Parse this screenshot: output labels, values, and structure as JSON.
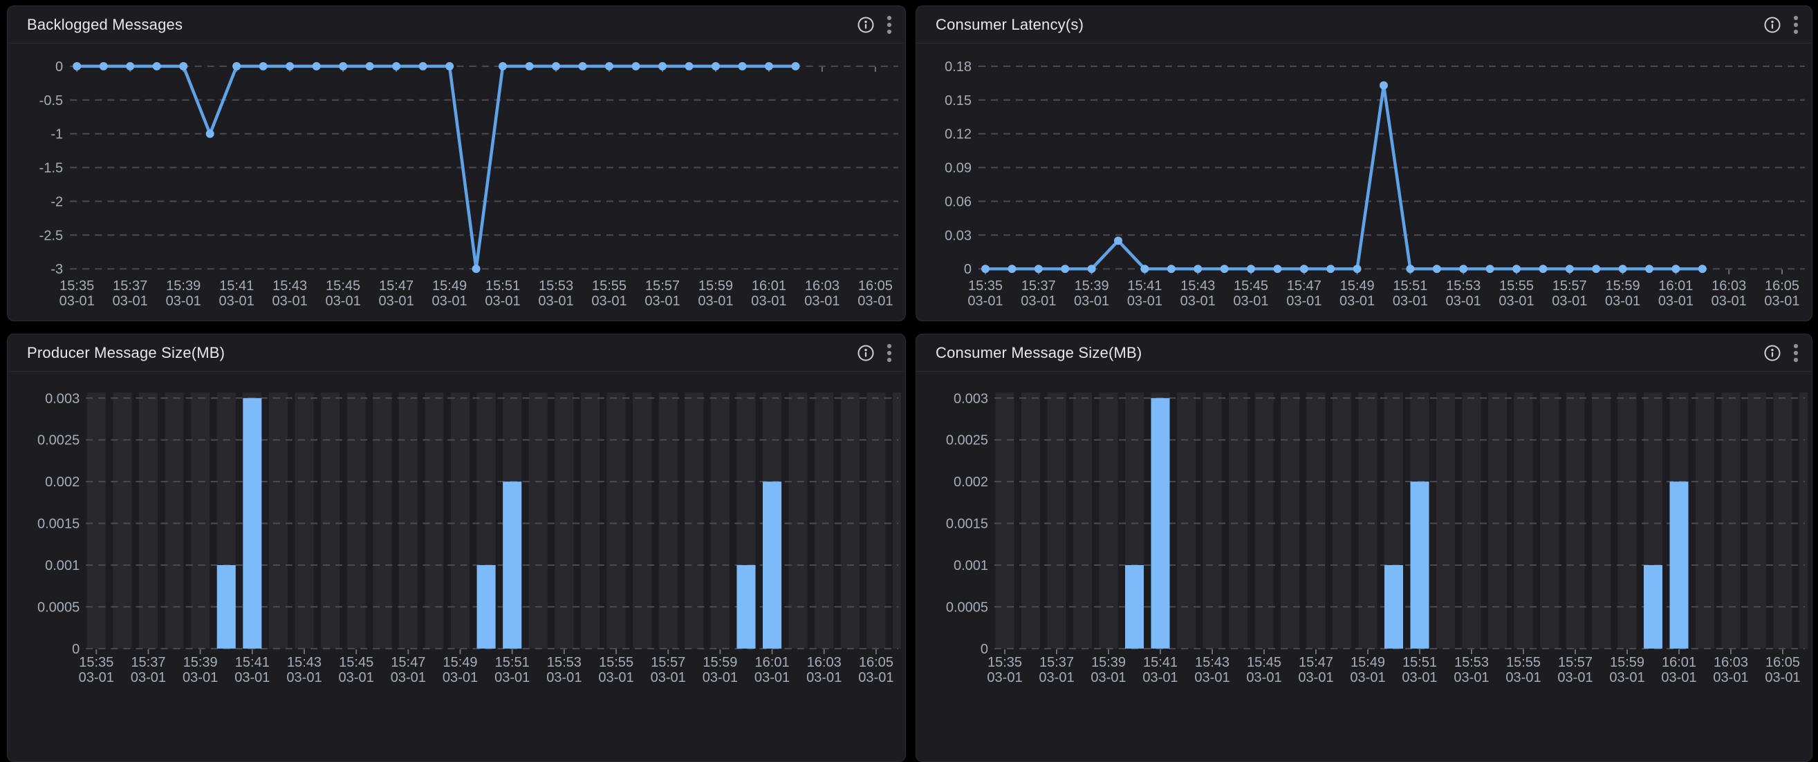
{
  "panels": [
    {
      "title": "Backlogged Messages"
    },
    {
      "title": "Consumer Latency(s)"
    },
    {
      "title": "Producer Message Size(MB)"
    },
    {
      "title": "Consumer Message Size(MB)"
    }
  ],
  "panel_actions": {
    "info_icon": "info-icon",
    "menu_icon": "kebab-menu-icon"
  },
  "colors": {
    "page_bg": "#000000",
    "panel_bg": "#1d1d21",
    "panel_border": "#2c2c31",
    "divider": "#2a2a2f",
    "title_text": "#e8e8ea",
    "tick_text": "#a7adb8",
    "grid_line": "#4b4b51",
    "axis_tick": "#6e6e75",
    "series_line": "#5fa3e6",
    "series_marker": "#7ab6f3",
    "series_bar": "#7dbafa",
    "bar_background": "#29292d",
    "icon": "#cfcfd4",
    "kebab": "#8f8f96"
  },
  "chart_data": [
    {
      "type": "line",
      "title": "Backlogged Messages",
      "x": [
        "15:35",
        "15:36",
        "15:37",
        "15:38",
        "15:39",
        "15:40",
        "15:41",
        "15:42",
        "15:43",
        "15:44",
        "15:45",
        "15:46",
        "15:47",
        "15:48",
        "15:49",
        "15:50",
        "15:51",
        "15:52",
        "15:53",
        "15:54",
        "15:55",
        "15:56",
        "15:57",
        "15:58",
        "15:59",
        "16:00",
        "16:01",
        "16:02"
      ],
      "values": [
        0,
        0,
        0,
        0,
        0,
        -1,
        0,
        0,
        0,
        0,
        0,
        0,
        0,
        0,
        0,
        -3,
        0,
        0,
        0,
        0,
        0,
        0,
        0,
        0,
        0,
        0,
        0,
        0
      ],
      "ylim": [
        -3,
        0
      ],
      "yticks": [
        "0",
        "-0.5",
        "-1",
        "-1.5",
        "-2",
        "-2.5",
        "-3"
      ],
      "xtick_labels": [
        "15:35",
        "15:37",
        "15:39",
        "15:41",
        "15:43",
        "15:45",
        "15:47",
        "15:49",
        "15:51",
        "15:53",
        "15:55",
        "15:57",
        "15:59",
        "16:01",
        "16:03",
        "16:05"
      ],
      "date_label": "03-01",
      "grid": "dashed",
      "legend": "none"
    },
    {
      "type": "line",
      "title": "Consumer Latency(s)",
      "x": [
        "15:35",
        "15:36",
        "15:37",
        "15:38",
        "15:39",
        "15:40",
        "15:41",
        "15:42",
        "15:43",
        "15:44",
        "15:45",
        "15:46",
        "15:47",
        "15:48",
        "15:49",
        "15:50",
        "15:51",
        "15:52",
        "15:53",
        "15:54",
        "15:55",
        "15:56",
        "15:57",
        "15:58",
        "15:59",
        "16:00",
        "16:01",
        "16:02"
      ],
      "values": [
        0,
        0,
        0,
        0,
        0,
        0.025,
        0,
        0,
        0,
        0,
        0,
        0,
        0,
        0,
        0,
        0.163,
        0,
        0,
        0,
        0,
        0,
        0,
        0,
        0,
        0,
        0,
        0,
        0
      ],
      "ylim": [
        0,
        0.18
      ],
      "yticks": [
        "0.18",
        "0.15",
        "0.12",
        "0.09",
        "0.06",
        "0.03",
        "0"
      ],
      "xtick_labels": [
        "15:35",
        "15:37",
        "15:39",
        "15:41",
        "15:43",
        "15:45",
        "15:47",
        "15:49",
        "15:51",
        "15:53",
        "15:55",
        "15:57",
        "15:59",
        "16:01",
        "16:03",
        "16:05"
      ],
      "date_label": "03-01",
      "grid": "dashed",
      "legend": "none"
    },
    {
      "type": "bar",
      "title": "Producer Message Size(MB)",
      "x": [
        "15:35",
        "15:36",
        "15:37",
        "15:38",
        "15:39",
        "15:40",
        "15:41",
        "15:42",
        "15:43",
        "15:44",
        "15:45",
        "15:46",
        "15:47",
        "15:48",
        "15:49",
        "15:50",
        "15:51",
        "15:52",
        "15:53",
        "15:54",
        "15:55",
        "15:56",
        "15:57",
        "15:58",
        "15:59",
        "16:00",
        "16:01",
        "16:02",
        "16:03",
        "16:04",
        "16:05",
        "16:06"
      ],
      "values": [
        0,
        0,
        0,
        0,
        0,
        0.001,
        0.003,
        0,
        0,
        0,
        0,
        0,
        0,
        0,
        0,
        0.001,
        0.002,
        0,
        0,
        0,
        0,
        0,
        0,
        0,
        0,
        0.001,
        0.002,
        0,
        0,
        0,
        0,
        0
      ],
      "ylim": [
        0,
        0.003
      ],
      "yticks": [
        "0.003",
        "0.0025",
        "0.002",
        "0.0015",
        "0.001",
        "0.0005",
        "0"
      ],
      "xtick_labels": [
        "15:35",
        "15:37",
        "15:39",
        "15:41",
        "15:43",
        "15:45",
        "15:47",
        "15:49",
        "15:51",
        "15:53",
        "15:55",
        "15:57",
        "15:59",
        "16:01",
        "16:03",
        "16:05"
      ],
      "date_label": "03-01",
      "grid": "dashed",
      "legend": "none"
    },
    {
      "type": "bar",
      "title": "Consumer Message Size(MB)",
      "x": [
        "15:35",
        "15:36",
        "15:37",
        "15:38",
        "15:39",
        "15:40",
        "15:41",
        "15:42",
        "15:43",
        "15:44",
        "15:45",
        "15:46",
        "15:47",
        "15:48",
        "15:49",
        "15:50",
        "15:51",
        "15:52",
        "15:53",
        "15:54",
        "15:55",
        "15:56",
        "15:57",
        "15:58",
        "15:59",
        "16:00",
        "16:01",
        "16:02",
        "16:03",
        "16:04",
        "16:05",
        "16:06"
      ],
      "values": [
        0,
        0,
        0,
        0,
        0,
        0.001,
        0.003,
        0,
        0,
        0,
        0,
        0,
        0,
        0,
        0,
        0.001,
        0.002,
        0,
        0,
        0,
        0,
        0,
        0,
        0,
        0,
        0.001,
        0.002,
        0,
        0,
        0,
        0,
        0
      ],
      "ylim": [
        0,
        0.003
      ],
      "yticks": [
        "0.003",
        "0.0025",
        "0.002",
        "0.0015",
        "0.001",
        "0.0005",
        "0"
      ],
      "xtick_labels": [
        "15:35",
        "15:37",
        "15:39",
        "15:41",
        "15:43",
        "15:45",
        "15:47",
        "15:49",
        "15:51",
        "15:53",
        "15:55",
        "15:57",
        "15:59",
        "16:01",
        "16:03",
        "16:05"
      ],
      "date_label": "03-01",
      "grid": "dashed",
      "legend": "none"
    }
  ]
}
